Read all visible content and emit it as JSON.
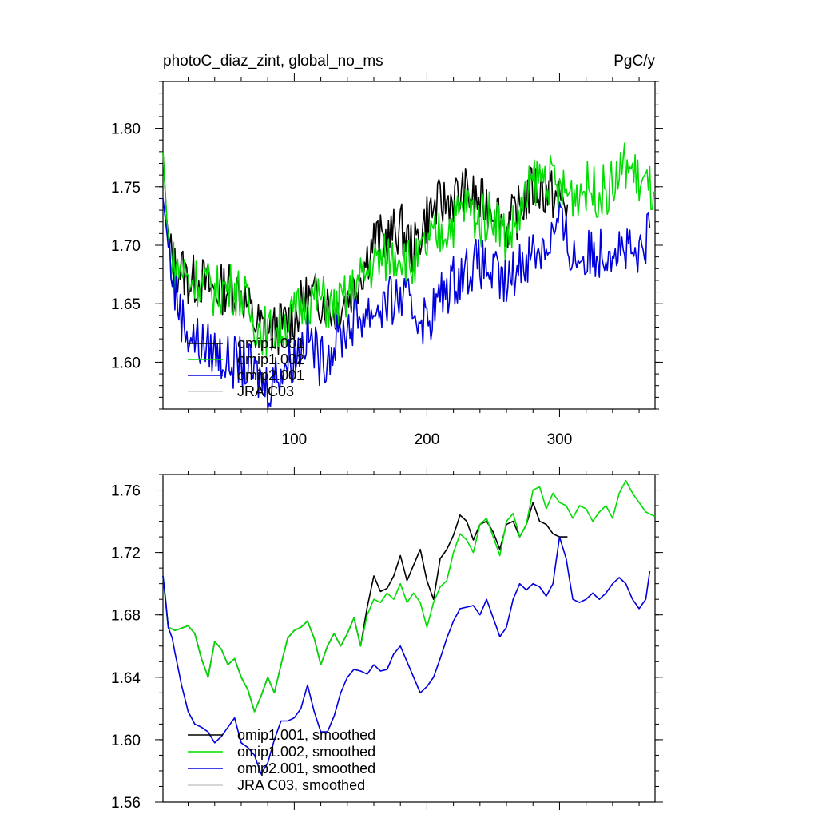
{
  "chart_data": [
    {
      "type": "line",
      "title": "photoC_diaz_zint, global_no_ms",
      "units": "PgC/y",
      "xlim": [
        1,
        372
      ],
      "ylim": [
        1.56,
        1.84
      ],
      "xticks": [
        100,
        200,
        300
      ],
      "xtick_labels": [
        "100",
        "200",
        "300"
      ],
      "yticks": [
        1.6,
        1.65,
        1.7,
        1.75,
        1.8
      ],
      "ytick_labels": [
        "1.60",
        "1.65",
        "1.70",
        "1.75",
        "1.80"
      ],
      "legend": [
        "omip1.001",
        "omip1.002",
        "omip2.001",
        "JRA C03"
      ],
      "series": [
        {
          "name": "omip1.001",
          "color": "#000000",
          "x": [
            1,
            5,
            10,
            15,
            20,
            30,
            40,
            50,
            60,
            70,
            80,
            90,
            100,
            110,
            120,
            130,
            140,
            150,
            160,
            170,
            180,
            190,
            200,
            210,
            220,
            230,
            240,
            250,
            260,
            270,
            280,
            290,
            300,
            306
          ],
          "values": [
            1.78,
            1.7,
            1.68,
            1.68,
            1.67,
            1.67,
            1.66,
            1.665,
            1.66,
            1.635,
            1.625,
            1.63,
            1.64,
            1.655,
            1.655,
            1.645,
            1.655,
            1.675,
            1.705,
            1.705,
            1.715,
            1.695,
            1.725,
            1.735,
            1.74,
            1.745,
            1.735,
            1.735,
            1.715,
            1.73,
            1.75,
            1.745,
            1.74,
            1.735
          ]
        },
        {
          "name": "omip1.002",
          "color": "#00dd00",
          "x": [
            1,
            5,
            10,
            15,
            20,
            30,
            40,
            50,
            60,
            70,
            80,
            90,
            100,
            110,
            120,
            130,
            140,
            150,
            160,
            170,
            180,
            190,
            200,
            210,
            220,
            230,
            240,
            250,
            260,
            270,
            280,
            290,
            300,
            310,
            320,
            330,
            340,
            350,
            360,
            372
          ],
          "values": [
            1.78,
            1.7,
            1.68,
            1.68,
            1.67,
            1.67,
            1.66,
            1.665,
            1.66,
            1.635,
            1.625,
            1.63,
            1.64,
            1.655,
            1.655,
            1.645,
            1.655,
            1.67,
            1.685,
            1.69,
            1.695,
            1.68,
            1.7,
            1.71,
            1.72,
            1.735,
            1.72,
            1.73,
            1.705,
            1.725,
            1.755,
            1.76,
            1.745,
            1.745,
            1.75,
            1.745,
            1.75,
            1.77,
            1.755,
            1.745
          ]
        },
        {
          "name": "omip2.001",
          "color": "#0000dd",
          "x": [
            1,
            5,
            10,
            15,
            20,
            30,
            40,
            50,
            60,
            70,
            80,
            90,
            100,
            110,
            120,
            130,
            140,
            150,
            160,
            170,
            180,
            190,
            200,
            210,
            220,
            230,
            240,
            250,
            260,
            270,
            280,
            290,
            300,
            310,
            320,
            330,
            340,
            350,
            360,
            368
          ],
          "values": [
            1.74,
            1.7,
            1.66,
            1.64,
            1.625,
            1.615,
            1.61,
            1.6,
            1.6,
            1.59,
            1.58,
            1.595,
            1.605,
            1.625,
            1.6,
            1.615,
            1.63,
            1.64,
            1.645,
            1.65,
            1.655,
            1.645,
            1.635,
            1.655,
            1.67,
            1.68,
            1.685,
            1.675,
            1.665,
            1.685,
            1.695,
            1.7,
            1.72,
            1.69,
            1.69,
            1.695,
            1.7,
            1.695,
            1.685,
            1.715
          ]
        },
        {
          "name": "JRA C03",
          "color": "#c8c8c8",
          "x": [],
          "values": []
        }
      ]
    },
    {
      "type": "line",
      "title": "",
      "xlim": [
        1,
        372
      ],
      "ylim": [
        1.56,
        1.77
      ],
      "xticks": [
        100,
        200,
        300
      ],
      "yticks": [
        1.56,
        1.6,
        1.64,
        1.68,
        1.72,
        1.76
      ],
      "ytick_labels": [
        "1.56",
        "1.60",
        "1.64",
        "1.68",
        "1.72",
        "1.76"
      ],
      "legend": [
        "omip1.001, smoothed",
        "omip1.002, smoothed",
        "omip2.001, smoothed",
        "JRA C03, smoothed"
      ],
      "series": [
        {
          "name": "omip1.001, smoothed",
          "color": "#000000",
          "x": [
            1,
            5,
            10,
            20,
            25,
            30,
            35,
            40,
            45,
            50,
            55,
            60,
            65,
            70,
            75,
            80,
            85,
            90,
            95,
            100,
            105,
            110,
            115,
            120,
            125,
            130,
            135,
            140,
            145,
            150,
            155,
            160,
            165,
            170,
            175,
            180,
            185,
            190,
            195,
            200,
            205,
            210,
            215,
            220,
            225,
            230,
            235,
            240,
            245,
            250,
            255,
            260,
            265,
            270,
            275,
            280,
            285,
            290,
            295,
            300,
            306
          ],
          "values": [
            1.705,
            1.672,
            1.67,
            1.673,
            1.668,
            1.652,
            1.64,
            1.663,
            1.658,
            1.648,
            1.652,
            1.64,
            1.632,
            1.618,
            1.628,
            1.64,
            1.63,
            1.648,
            1.665,
            1.67,
            1.672,
            1.676,
            1.665,
            1.648,
            1.66,
            1.668,
            1.66,
            1.668,
            1.678,
            1.66,
            1.685,
            1.705,
            1.695,
            1.697,
            1.705,
            1.718,
            1.702,
            1.712,
            1.722,
            1.702,
            1.69,
            1.716,
            1.722,
            1.731,
            1.744,
            1.74,
            1.728,
            1.738,
            1.74,
            1.733,
            1.722,
            1.738,
            1.74,
            1.73,
            1.738,
            1.752,
            1.74,
            1.738,
            1.732,
            1.73,
            1.73
          ]
        },
        {
          "name": "omip1.002, smoothed",
          "color": "#00dd00",
          "x": [
            1,
            5,
            10,
            20,
            25,
            30,
            35,
            40,
            45,
            50,
            55,
            60,
            65,
            70,
            75,
            80,
            85,
            90,
            95,
            100,
            105,
            110,
            115,
            120,
            125,
            130,
            135,
            140,
            145,
            150,
            155,
            160,
            165,
            170,
            175,
            180,
            185,
            190,
            195,
            200,
            205,
            210,
            215,
            220,
            225,
            230,
            235,
            240,
            245,
            250,
            255,
            260,
            265,
            270,
            275,
            280,
            285,
            290,
            295,
            300,
            305,
            310,
            315,
            320,
            325,
            330,
            335,
            340,
            345,
            350,
            355,
            360,
            365,
            372
          ],
          "values": [
            1.705,
            1.672,
            1.67,
            1.673,
            1.668,
            1.652,
            1.64,
            1.663,
            1.658,
            1.648,
            1.652,
            1.64,
            1.632,
            1.618,
            1.628,
            1.64,
            1.63,
            1.648,
            1.665,
            1.67,
            1.672,
            1.676,
            1.665,
            1.648,
            1.66,
            1.668,
            1.66,
            1.668,
            1.678,
            1.66,
            1.68,
            1.69,
            1.688,
            1.694,
            1.69,
            1.7,
            1.688,
            1.694,
            1.688,
            1.672,
            1.688,
            1.698,
            1.702,
            1.72,
            1.732,
            1.728,
            1.72,
            1.738,
            1.742,
            1.73,
            1.718,
            1.74,
            1.745,
            1.73,
            1.738,
            1.76,
            1.762,
            1.748,
            1.758,
            1.752,
            1.75,
            1.742,
            1.75,
            1.748,
            1.74,
            1.746,
            1.75,
            1.742,
            1.758,
            1.766,
            1.758,
            1.752,
            1.746,
            1.743
          ]
        },
        {
          "name": "omip2.001, smoothed",
          "color": "#0000dd",
          "x": [
            1,
            3,
            5,
            8,
            10,
            15,
            20,
            25,
            30,
            35,
            40,
            45,
            50,
            55,
            60,
            65,
            70,
            75,
            80,
            85,
            90,
            95,
            100,
            105,
            110,
            115,
            120,
            125,
            130,
            135,
            140,
            145,
            150,
            155,
            160,
            165,
            170,
            175,
            180,
            185,
            190,
            195,
            200,
            205,
            210,
            215,
            220,
            225,
            230,
            235,
            240,
            245,
            250,
            255,
            260,
            265,
            270,
            275,
            280,
            285,
            290,
            295,
            300,
            305,
            310,
            315,
            320,
            325,
            330,
            335,
            340,
            345,
            350,
            355,
            360,
            365,
            368
          ],
          "values": [
            1.705,
            1.69,
            1.672,
            1.665,
            1.656,
            1.635,
            1.618,
            1.61,
            1.608,
            1.605,
            1.598,
            1.602,
            1.608,
            1.614,
            1.598,
            1.595,
            1.59,
            1.578,
            1.585,
            1.6,
            1.612,
            1.612,
            1.614,
            1.62,
            1.635,
            1.618,
            1.605,
            1.605,
            1.615,
            1.63,
            1.64,
            1.645,
            1.644,
            1.642,
            1.648,
            1.644,
            1.645,
            1.655,
            1.66,
            1.65,
            1.64,
            1.63,
            1.634,
            1.64,
            1.652,
            1.665,
            1.676,
            1.684,
            1.685,
            1.686,
            1.68,
            1.69,
            1.678,
            1.666,
            1.672,
            1.69,
            1.7,
            1.696,
            1.7,
            1.698,
            1.692,
            1.7,
            1.73,
            1.716,
            1.69,
            1.688,
            1.69,
            1.694,
            1.69,
            1.694,
            1.7,
            1.704,
            1.7,
            1.69,
            1.684,
            1.69,
            1.708
          ]
        },
        {
          "name": "JRA C03, smoothed",
          "color": "#c8c8c8",
          "x": [],
          "values": []
        }
      ]
    }
  ]
}
